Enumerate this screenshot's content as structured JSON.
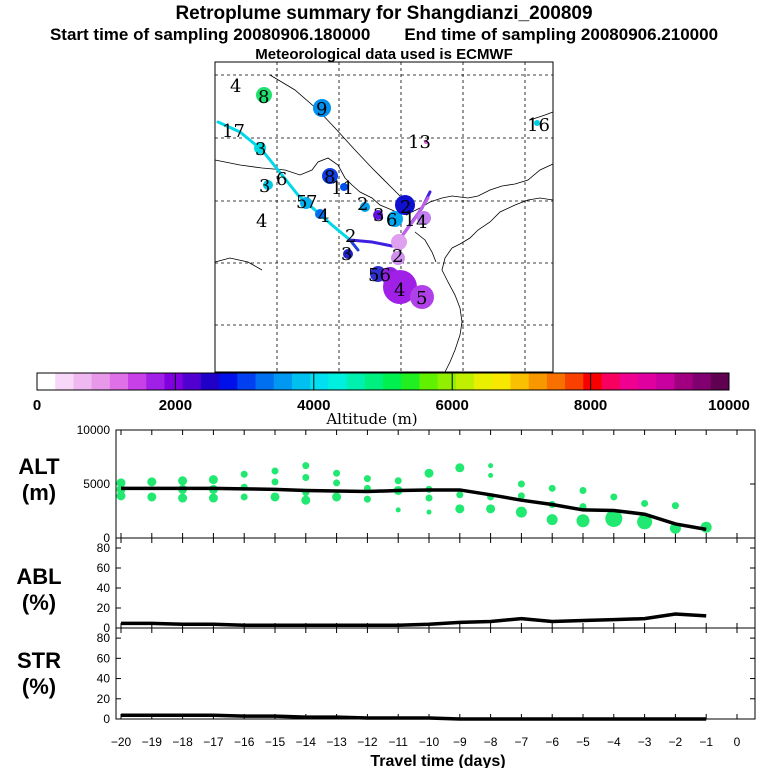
{
  "header": {
    "title": "Retroplume summary for Shangdianzi_200809",
    "start_label": "Start time of sampling 20080906.180000",
    "end_label": "End time of sampling 20080906.210000",
    "met_label": "Meteorological data used is ECMWF"
  },
  "colorbar": {
    "ticks": [
      "0",
      "2000",
      "4000",
      "6000",
      "8000",
      "10000"
    ],
    "label": "Altitude (m)",
    "colors": [
      "#ffffff",
      "#f8d8f8",
      "#f0b8f0",
      "#e898e8",
      "#e070e8",
      "#c840e8",
      "#a020e8",
      "#8000e0",
      "#5000d0",
      "#2000c8",
      "#0010e8",
      "#0040f0",
      "#0070f0",
      "#0098f0",
      "#00c0f0",
      "#00e0f0",
      "#00f0e0",
      "#00f0b0",
      "#00f080",
      "#00f050",
      "#20f020",
      "#60f000",
      "#90f000",
      "#c0f000",
      "#e8f000",
      "#f8e800",
      "#f8c000",
      "#f89800",
      "#f87000",
      "#f84000",
      "#f80000",
      "#f80060",
      "#f00090",
      "#e000a0",
      "#c800a0",
      "#a00080",
      "#800070",
      "#600050"
    ]
  },
  "map": {
    "labels": [
      {
        "text": "4",
        "color": "#000000"
      },
      {
        "text": "8",
        "color": "#000000"
      },
      {
        "text": "9",
        "color": "#000000"
      },
      {
        "text": "13",
        "color": "#000000"
      },
      {
        "text": "16",
        "color": "#000000"
      },
      {
        "text": "17",
        "color": "#000000"
      },
      {
        "text": "3",
        "color": "#000000"
      },
      {
        "text": "6",
        "color": "#000000"
      },
      {
        "text": "3",
        "color": "#000000"
      },
      {
        "text": "8",
        "color": "#000000"
      },
      {
        "text": "11",
        "color": "#000000"
      },
      {
        "text": "5",
        "color": "#000000"
      },
      {
        "text": "7",
        "color": "#000000"
      },
      {
        "text": "4",
        "color": "#000000"
      },
      {
        "text": "4",
        "color": "#000000"
      },
      {
        "text": "2",
        "color": "#000000"
      },
      {
        "text": "3",
        "color": "#000000"
      },
      {
        "text": "2",
        "color": "#000000"
      },
      {
        "text": "6",
        "color": "#000000"
      },
      {
        "text": "1",
        "color": "#000000"
      },
      {
        "text": "4",
        "color": "#000000"
      },
      {
        "text": "2",
        "color": "#000000"
      },
      {
        "text": "3",
        "color": "#000000"
      },
      {
        "text": "2",
        "color": "#000000"
      },
      {
        "text": "56",
        "color": "#000000"
      },
      {
        "text": "4",
        "color": "#000000"
      },
      {
        "text": "5",
        "color": "#000000"
      }
    ]
  },
  "panels": {
    "alt": {
      "label1": "ALT",
      "label2": "(m)"
    },
    "abl": {
      "label1": "ABL",
      "label2": "(%)"
    },
    "str": {
      "label1": "STR",
      "label2": "(%)"
    },
    "xlabel": "Travel time (days)"
  },
  "chart_data": [
    {
      "type": "scatter",
      "title": "ALT (m)",
      "ylabel": "ALT (m)",
      "xlabel": "Travel time (days)",
      "ylim": [
        0,
        10000
      ],
      "yticks": [
        "0",
        "5000",
        "10000"
      ],
      "x_ticks": [
        "-20",
        "-19",
        "-18",
        "-17",
        "-16",
        "-15",
        "-14",
        "-13",
        "-12",
        "-11",
        "-10",
        "-9",
        "-8",
        "-7",
        "-6",
        "-5",
        "-4",
        "-3",
        "-2",
        "-1",
        "0"
      ],
      "xlim": [
        -20,
        0
      ],
      "mean_line": {
        "x": [
          -20,
          -19,
          -18,
          -17,
          -16,
          -15,
          -14,
          -13,
          -12,
          -11,
          -10,
          -9,
          -8,
          -7,
          -6,
          -5,
          -4,
          -3,
          -2,
          -1
        ],
        "y": [
          4600,
          4600,
          4600,
          4600,
          4550,
          4500,
          4400,
          4350,
          4300,
          4400,
          4450,
          4450,
          4000,
          3500,
          3100,
          2600,
          2550,
          2200,
          1300,
          800
        ]
      },
      "points": [
        {
          "x": -20,
          "y": 5100,
          "s": 3
        },
        {
          "x": -20,
          "y": 4500,
          "s": 3
        },
        {
          "x": -20,
          "y": 3900,
          "s": 3
        },
        {
          "x": -19,
          "y": 5200,
          "s": 3
        },
        {
          "x": -19,
          "y": 3800,
          "s": 3
        },
        {
          "x": -18,
          "y": 5300,
          "s": 3
        },
        {
          "x": -18,
          "y": 4500,
          "s": 3
        },
        {
          "x": -18,
          "y": 3700,
          "s": 3
        },
        {
          "x": -17,
          "y": 5400,
          "s": 3
        },
        {
          "x": -17,
          "y": 4500,
          "s": 3
        },
        {
          "x": -17,
          "y": 3700,
          "s": 3
        },
        {
          "x": -16,
          "y": 5900,
          "s": 2
        },
        {
          "x": -16,
          "y": 4700,
          "s": 2
        },
        {
          "x": -16,
          "y": 3800,
          "s": 2
        },
        {
          "x": -15,
          "y": 6200,
          "s": 2
        },
        {
          "x": -15,
          "y": 5200,
          "s": 2
        },
        {
          "x": -15,
          "y": 3800,
          "s": 3
        },
        {
          "x": -14,
          "y": 6700,
          "s": 2
        },
        {
          "x": -14,
          "y": 5600,
          "s": 2
        },
        {
          "x": -14,
          "y": 4200,
          "s": 2
        },
        {
          "x": -14,
          "y": 3500,
          "s": 3
        },
        {
          "x": -13,
          "y": 6000,
          "s": 2
        },
        {
          "x": -13,
          "y": 5100,
          "s": 2
        },
        {
          "x": -13,
          "y": 3800,
          "s": 3
        },
        {
          "x": -12,
          "y": 5500,
          "s": 2
        },
        {
          "x": -12,
          "y": 4600,
          "s": 2
        },
        {
          "x": -12,
          "y": 3600,
          "s": 2
        },
        {
          "x": -11,
          "y": 5300,
          "s": 2
        },
        {
          "x": -11,
          "y": 4400,
          "s": 3
        },
        {
          "x": -11,
          "y": 2600,
          "s": 1
        },
        {
          "x": -10,
          "y": 6000,
          "s": 3
        },
        {
          "x": -10,
          "y": 4500,
          "s": 2
        },
        {
          "x": -10,
          "y": 3700,
          "s": 2
        },
        {
          "x": -10,
          "y": 2400,
          "s": 1
        },
        {
          "x": -9,
          "y": 6500,
          "s": 3
        },
        {
          "x": -9,
          "y": 4000,
          "s": 2
        },
        {
          "x": -9,
          "y": 2700,
          "s": 3
        },
        {
          "x": -8,
          "y": 6700,
          "s": 1
        },
        {
          "x": -8,
          "y": 5800,
          "s": 1
        },
        {
          "x": -8,
          "y": 3800,
          "s": 2
        },
        {
          "x": -8,
          "y": 2700,
          "s": 3
        },
        {
          "x": -7,
          "y": 5000,
          "s": 2
        },
        {
          "x": -7,
          "y": 3900,
          "s": 2
        },
        {
          "x": -7,
          "y": 2400,
          "s": 4
        },
        {
          "x": -6,
          "y": 4600,
          "s": 2
        },
        {
          "x": -6,
          "y": 3100,
          "s": 2
        },
        {
          "x": -6,
          "y": 1700,
          "s": 4
        },
        {
          "x": -5,
          "y": 4400,
          "s": 2
        },
        {
          "x": -5,
          "y": 2900,
          "s": 2
        },
        {
          "x": -5,
          "y": 1600,
          "s": 5
        },
        {
          "x": -4,
          "y": 3800,
          "s": 2
        },
        {
          "x": -4,
          "y": 1800,
          "s": 7
        },
        {
          "x": -3,
          "y": 3200,
          "s": 2
        },
        {
          "x": -3,
          "y": 1500,
          "s": 6
        },
        {
          "x": -2,
          "y": 3000,
          "s": 2
        },
        {
          "x": -2,
          "y": 900,
          "s": 4
        },
        {
          "x": -1,
          "y": 1000,
          "s": 4
        }
      ]
    },
    {
      "type": "line",
      "title": "ABL (%)",
      "ylabel": "ABL (%)",
      "ylim": [
        0,
        90
      ],
      "yticks": [
        "0",
        "20",
        "40",
        "60",
        "80"
      ],
      "x": [
        -20,
        -19,
        -18,
        -17,
        -16,
        -15,
        -14,
        -13,
        -12,
        -11,
        -10,
        -9,
        -8,
        -7,
        -6,
        -5,
        -4,
        -3,
        -2,
        -1
      ],
      "values": [
        5,
        5,
        4,
        4,
        3,
        3,
        3,
        3,
        3,
        3,
        4,
        6,
        7,
        10,
        7,
        8,
        9,
        10,
        15,
        13
      ]
    },
    {
      "type": "line",
      "title": "STR (%)",
      "ylabel": "STR (%)",
      "ylim": [
        0,
        90
      ],
      "yticks": [
        "0",
        "20",
        "40",
        "60",
        "80"
      ],
      "x": [
        -20,
        -19,
        -18,
        -17,
        -16,
        -15,
        -14,
        -13,
        -12,
        -11,
        -10,
        -9,
        -8,
        -7,
        -6,
        -5,
        -4,
        -3,
        -2,
        -1
      ],
      "values": [
        4,
        4,
        4,
        4,
        3,
        3,
        2,
        2,
        1,
        1,
        1,
        0,
        0,
        0,
        0,
        0,
        0,
        0,
        0,
        0
      ]
    }
  ]
}
